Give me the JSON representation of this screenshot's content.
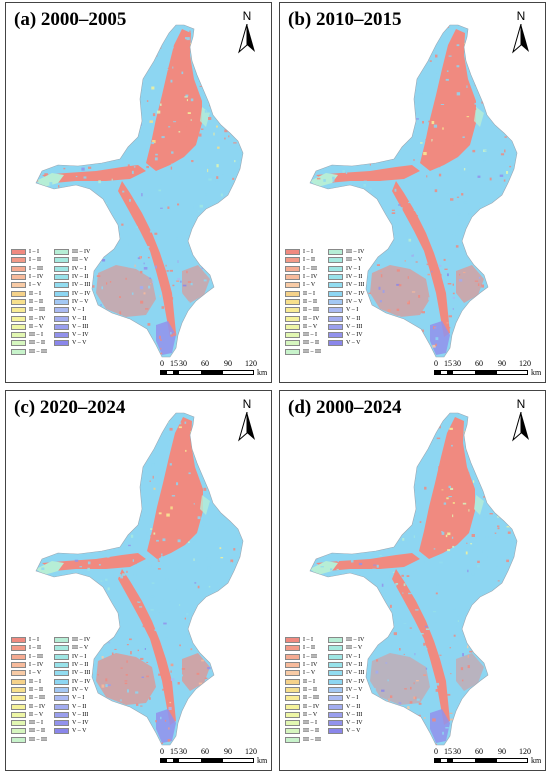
{
  "panels": [
    {
      "title": "(a) 2000–2005",
      "variant": 0
    },
    {
      "title": "(b) 2010–2015",
      "variant": 1
    },
    {
      "title": "(c) 2020–2024",
      "variant": 2
    },
    {
      "title": "(d) 2000–2024",
      "variant": 3
    }
  ],
  "north_label": "N",
  "scale_bar": {
    "ticks": [
      "0",
      "15",
      "30",
      "60",
      "90",
      "120"
    ],
    "unit": "km"
  },
  "legend": [
    {
      "label": "I – I",
      "color": "#f08a80"
    },
    {
      "label": "I – II",
      "color": "#f39a88"
    },
    {
      "label": "I – III",
      "color": "#f5ab92"
    },
    {
      "label": "I – IV",
      "color": "#f7bb9c"
    },
    {
      "label": "I – V",
      "color": "#f8cba6"
    },
    {
      "label": "II – I",
      "color": "#f5d28a"
    },
    {
      "label": "II – II",
      "color": "#f7e08c"
    },
    {
      "label": "II – III",
      "color": "#f9ec95"
    },
    {
      "label": "II – IV",
      "color": "#f5f29a"
    },
    {
      "label": "II – V",
      "color": "#eef6a6"
    },
    {
      "label": "III – I",
      "color": "#e2f7b2"
    },
    {
      "label": "III – II",
      "color": "#d6f6bf"
    },
    {
      "label": "III – III",
      "color": "#c8f3cb"
    },
    {
      "label": "III – IV",
      "color": "#b6eed6"
    },
    {
      "label": "III – V",
      "color": "#a6eae0"
    },
    {
      "label": "IV – I",
      "color": "#9ee6e4"
    },
    {
      "label": "IV – II",
      "color": "#98e2ea"
    },
    {
      "label": "IV – III",
      "color": "#92dcf0"
    },
    {
      "label": "IV – IV",
      "color": "#8dd6f2"
    },
    {
      "label": "IV – V",
      "color": "#a3c8f4"
    },
    {
      "label": "V – I",
      "color": "#aabaf3"
    },
    {
      "label": "V – II",
      "color": "#a2acf0"
    },
    {
      "label": "V – III",
      "color": "#9a9fee"
    },
    {
      "label": "V – IV",
      "color": "#9292ec"
    },
    {
      "label": "V – V",
      "color": "#8a86ea"
    }
  ],
  "colors": {
    "base": "#8dd6f2",
    "low": "#f08a80",
    "transition": "#b6eed6",
    "mid": "#f7e08c",
    "high": "#9292ec"
  }
}
